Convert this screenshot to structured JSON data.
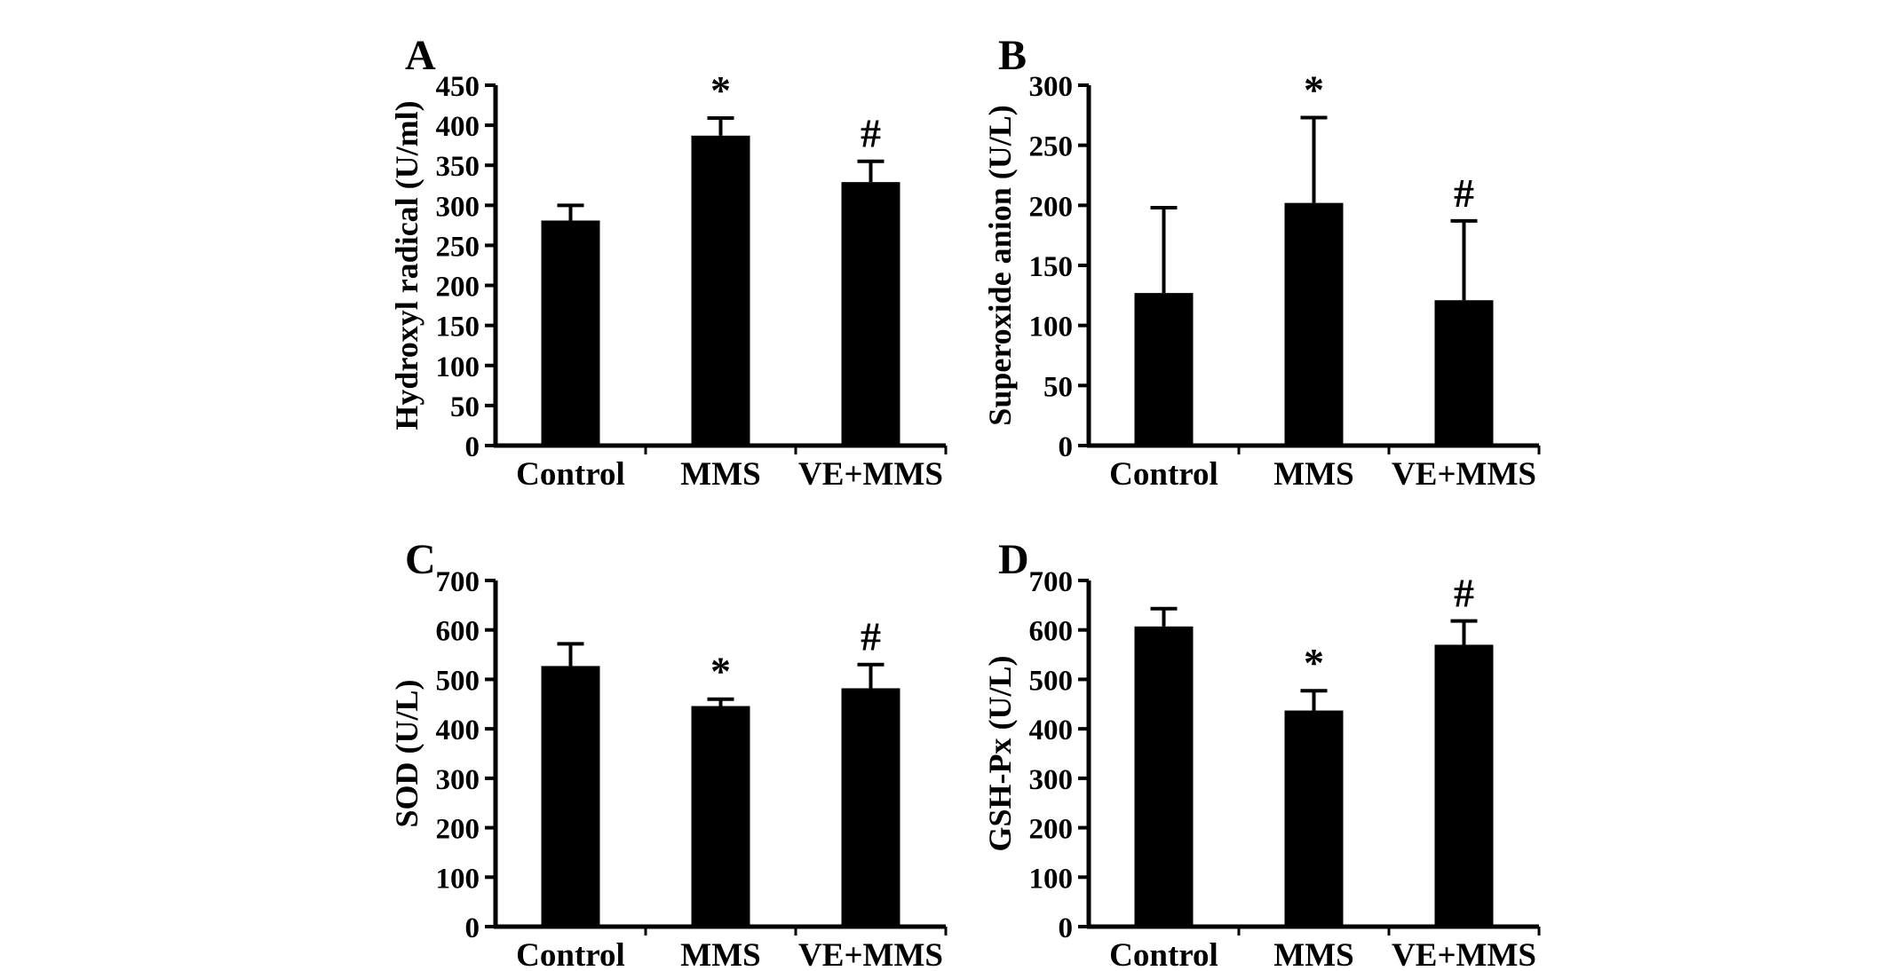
{
  "figure": {
    "background": "#ffffff",
    "text_color": "#000000",
    "bar_color": "#000000",
    "layout": "2x2 grid of panels"
  },
  "chart_data": [
    {
      "panel": "A",
      "type": "bar",
      "title": "",
      "xlabel": "",
      "ylabel": "Hydroxyl radical (U/ml)",
      "categories": [
        "Control",
        "MMS",
        "VE+MMS"
      ],
      "values": [
        281,
        387,
        329
      ],
      "errors": [
        19,
        22,
        26
      ],
      "annotations": [
        "",
        "*",
        "#"
      ],
      "ylim": [
        0,
        450
      ],
      "yticks": [
        0,
        50,
        100,
        150,
        200,
        250,
        300,
        350,
        400,
        450
      ],
      "grid": false,
      "legend": false
    },
    {
      "panel": "B",
      "type": "bar",
      "title": "",
      "xlabel": "",
      "ylabel": "Superoxide anion (U/L)",
      "categories": [
        "Control",
        "MMS",
        "VE+MMS"
      ],
      "values": [
        127,
        202,
        121
      ],
      "errors": [
        71,
        71,
        66
      ],
      "annotations": [
        "",
        "*",
        "#"
      ],
      "ylim": [
        0,
        300
      ],
      "yticks": [
        0,
        50,
        100,
        150,
        200,
        250,
        300
      ],
      "grid": false,
      "legend": false
    },
    {
      "panel": "C",
      "type": "bar",
      "title": "",
      "xlabel": "",
      "ylabel": "SOD (U/L)",
      "categories": [
        "Control",
        "MMS",
        "VE+MMS"
      ],
      "values": [
        527,
        446,
        482
      ],
      "errors": [
        45,
        14,
        48
      ],
      "annotations": [
        "",
        "*",
        "#"
      ],
      "ylim": [
        0,
        700
      ],
      "yticks": [
        0,
        100,
        200,
        300,
        400,
        500,
        600,
        700
      ],
      "grid": false,
      "legend": false
    },
    {
      "panel": "D",
      "type": "bar",
      "title": "",
      "xlabel": "",
      "ylabel": "GSH-Px (U/L)",
      "categories": [
        "Control",
        "MMS",
        "VE+MMS"
      ],
      "values": [
        607,
        437,
        570
      ],
      "errors": [
        36,
        40,
        48
      ],
      "annotations": [
        "",
        "*",
        "#"
      ],
      "ylim": [
        0,
        700
      ],
      "yticks": [
        0,
        100,
        200,
        300,
        400,
        500,
        600,
        700
      ],
      "grid": false,
      "legend": false
    }
  ]
}
